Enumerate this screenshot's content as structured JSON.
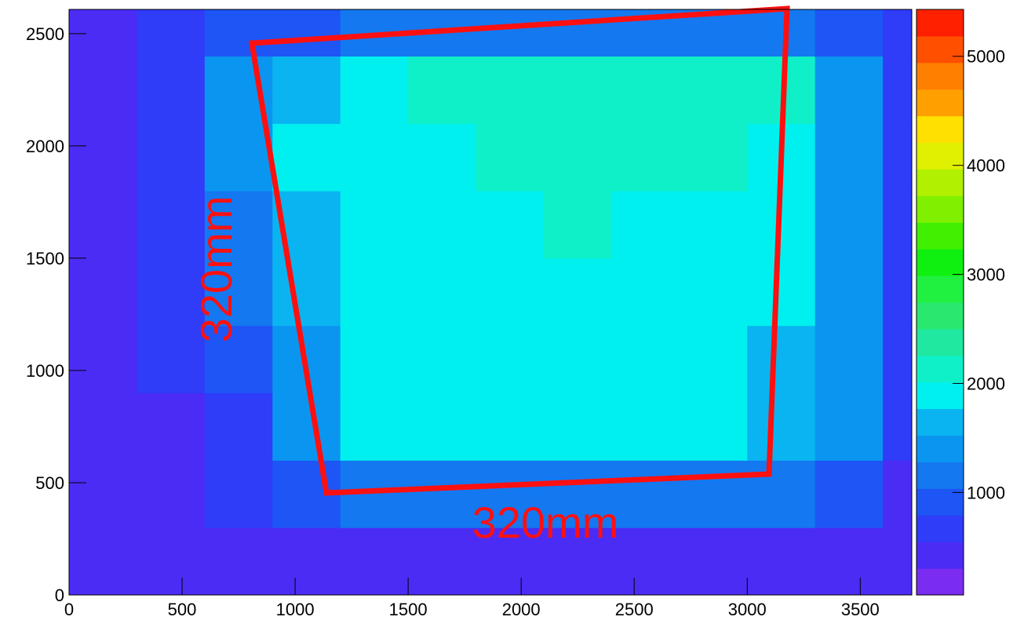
{
  "chart_data": {
    "type": "heatmap",
    "xbins": [
      0,
      300,
      600,
      900,
      1200,
      1500,
      1800,
      2100,
      2400,
      2700,
      3000,
      3300,
      3600,
      3728
    ],
    "ybins": [
      0,
      300,
      600,
      900,
      1200,
      1500,
      1800,
      2100,
      2400,
      2608
    ],
    "z": [
      [
        450,
        500,
        500,
        500,
        500,
        500,
        500,
        500,
        500,
        500,
        500,
        500,
        450
      ],
      [
        450,
        500,
        600,
        900,
        1100,
        1200,
        1200,
        1200,
        1200,
        1200,
        1100,
        900,
        500
      ],
      [
        450,
        500,
        700,
        1300,
        1800,
        1800,
        1800,
        1800,
        1800,
        1800,
        1700,
        1300,
        600
      ],
      [
        450,
        550,
        900,
        1400,
        1800,
        1850,
        1850,
        1850,
        1850,
        1850,
        1750,
        1300,
        600
      ],
      [
        450,
        600,
        1100,
        1600,
        1850,
        1900,
        1950,
        1950,
        1950,
        1900,
        1800,
        1400,
        600
      ],
      [
        450,
        600,
        1200,
        1700,
        1900,
        1950,
        2000,
        2050,
        2000,
        1950,
        1850,
        1400,
        650
      ],
      [
        450,
        650,
        1300,
        1800,
        1950,
        2000,
        2050,
        2100,
        2150,
        2100,
        1950,
        1500,
        650
      ],
      [
        450,
        650,
        1300,
        1700,
        2000,
        2050,
        2100,
        2200,
        2250,
        2250,
        2050,
        1500,
        650
      ],
      [
        450,
        550,
        800,
        1000,
        1100,
        1150,
        1200,
        1200,
        1200,
        1200,
        1100,
        900,
        550
      ]
    ],
    "xlim": [
      0,
      3728
    ],
    "xticks": [
      0,
      500,
      1000,
      1500,
      2000,
      2500,
      3000,
      3500
    ],
    "ylim": [
      0,
      2608
    ],
    "yticks": [
      0,
      500,
      1000,
      1500,
      2000,
      2500
    ],
    "zlim": [
      60,
      5430
    ],
    "zticks": [
      1000,
      2000,
      3000,
      4000,
      5000
    ],
    "palette": [
      "#7a2cf0",
      "#4b2cf5",
      "#2f3cf8",
      "#1e55f5",
      "#1478f0",
      "#0a96f0",
      "#0ab4f0",
      "#00f0f0",
      "#10f0c8",
      "#20e8a0",
      "#28e870",
      "#20f040",
      "#10f010",
      "#40f000",
      "#80f000",
      "#b0f000",
      "#e0f000",
      "#ffe000",
      "#ffa000",
      "#ff8000",
      "#ff5000",
      "#ff2000"
    ],
    "annotations": [
      "320mm",
      "320mm"
    ]
  }
}
